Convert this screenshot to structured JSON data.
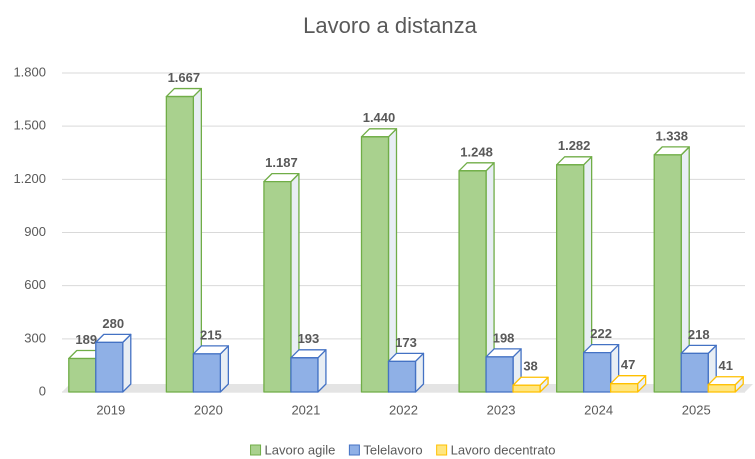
{
  "chart_data": {
    "type": "bar3d",
    "title": "Lavoro a distanza",
    "categories": [
      "2019",
      "2020",
      "2021",
      "2022",
      "2023",
      "2024",
      "2025"
    ],
    "series": [
      {
        "name": "Lavoro agile",
        "color": "#a9d18e",
        "edge": "#70ad47",
        "values": [
          189,
          1667,
          1187,
          1440,
          1248,
          1282,
          1338
        ],
        "value_labels": [
          "189",
          "1.667",
          "1.187",
          "1.440",
          "1.248",
          "1.282",
          "1.338"
        ]
      },
      {
        "name": "Telelavoro",
        "color": "#8fb0e6",
        "edge": "#4472c4",
        "values": [
          280,
          215,
          193,
          173,
          198,
          222,
          218
        ]
      },
      {
        "name": "Lavoro decentrato",
        "color": "#ffe680",
        "edge": "#ffc000",
        "values": [
          null,
          null,
          null,
          null,
          38,
          47,
          41
        ]
      }
    ],
    "ylim": [
      0,
      1800
    ],
    "yticks": [
      0,
      300,
      600,
      900,
      {
        "value": 1200,
        "label": "1.200"
      },
      {
        "value": 1500,
        "label": "1.500"
      },
      {
        "value": 1800,
        "label": "1.800"
      }
    ],
    "grid": true,
    "legend": "bottom"
  }
}
